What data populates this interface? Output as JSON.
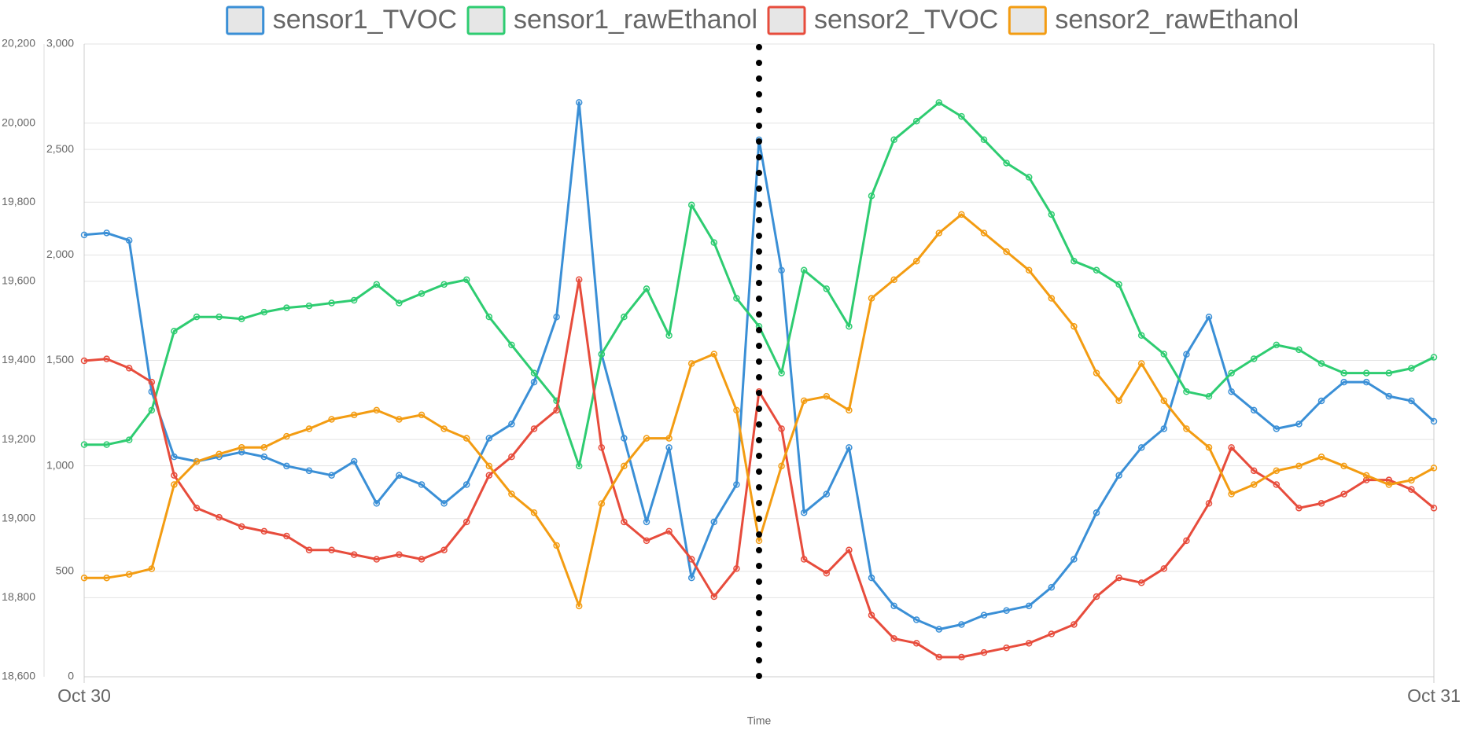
{
  "chart_data": {
    "type": "line",
    "x_label": "Time",
    "xlim": [
      0,
      24
    ],
    "xticks": [
      {
        "value": 0,
        "label": "Oct 30"
      },
      {
        "value": 24,
        "label": "Oct 31"
      }
    ],
    "x": [
      0,
      0.4,
      0.8,
      1.2,
      1.6,
      2,
      2.4,
      2.8,
      3.2,
      3.6,
      4,
      4.4,
      4.8,
      5.2,
      5.6,
      6,
      6.4,
      6.8,
      7.2,
      7.6,
      8,
      8.4,
      8.8,
      9.2,
      9.6,
      10,
      10.4,
      10.8,
      11.2,
      11.6,
      12,
      12.4,
      12.8,
      13.2,
      13.6,
      14,
      14.4,
      14.8,
      15.2,
      15.6,
      16,
      16.4,
      16.8,
      17.2,
      17.6,
      18,
      18.4,
      18.8,
      19.2,
      19.6,
      20,
      20.4,
      20.8,
      21.2,
      21.6,
      22,
      22.4,
      22.8,
      23.2,
      23.6,
      24
    ],
    "ylim": [
      0,
      3000
    ],
    "yticks": [
      0,
      500,
      {
        "value": 1000,
        "label": "1,000"
      },
      {
        "value": 1500,
        "label": "1,500"
      },
      {
        "value": 2000,
        "label": "2,000"
      },
      {
        "value": 2500,
        "label": "2,500"
      },
      {
        "value": 3000,
        "label": "3,000"
      }
    ],
    "y2lim": [
      18600,
      20200
    ],
    "y2ticks": [
      {
        "value": 18600,
        "label": "18,600"
      },
      {
        "value": 18800,
        "label": "18,800"
      },
      {
        "value": 19000,
        "label": "19,000"
      },
      {
        "value": 19200,
        "label": "19,200"
      },
      {
        "value": 19400,
        "label": "19,400"
      },
      {
        "value": 19600,
        "label": "19,600"
      },
      {
        "value": 19800,
        "label": "19,800"
      },
      {
        "value": 20000,
        "label": "20,000"
      },
      {
        "value": 20200,
        "label": "20,200"
      }
    ],
    "grid": true,
    "cursor_x": 12,
    "series": [
      {
        "name": "sensor1_TVOC",
        "color": "#3a8fd6",
        "values": [
          2095,
          2104,
          2069,
          1352,
          1043,
          1021,
          1043,
          1065,
          1043,
          999,
          977,
          955,
          1021,
          822,
          955,
          911,
          822,
          911,
          1131,
          1198,
          1397,
          1706,
          2723,
          1529,
          1131,
          734,
          1087,
          469,
          734,
          911,
          2546,
          1927,
          778,
          866,
          1087,
          469,
          336,
          270,
          225,
          248,
          292,
          314,
          336,
          424,
          557,
          778,
          955,
          1087,
          1176,
          1529,
          1706,
          1352,
          1264,
          1176,
          1198,
          1308,
          1397,
          1397,
          1330,
          1308,
          1211
        ]
      },
      {
        "name": "sensor1_rawEthanol",
        "color": "#2ecc71",
        "axis": "y2",
        "values": [
          19187,
          19187,
          19199,
          19274,
          19474,
          19510,
          19510,
          19505,
          19522,
          19533,
          19538,
          19545,
          19552,
          19592,
          19545,
          19569,
          19592,
          19604,
          19510,
          19439,
          19368,
          19298,
          19133,
          19416,
          19510,
          19581,
          19463,
          19793,
          19698,
          19557,
          19486,
          19368,
          19628,
          19581,
          19486,
          19816,
          19958,
          20005,
          20052,
          20017,
          19958,
          19899,
          19863,
          19769,
          19651,
          19628,
          19592,
          19463,
          19416,
          19321,
          19309,
          19368,
          19404,
          19439,
          19427,
          19392,
          19368,
          19368,
          19368,
          19380,
          19408
        ]
      },
      {
        "name": "sensor2_TVOC",
        "color": "#e74c3c",
        "values": [
          1498,
          1507,
          1463,
          1397,
          955,
          800,
          756,
          712,
          690,
          667,
          601,
          601,
          579,
          557,
          579,
          557,
          601,
          734,
          955,
          1043,
          1176,
          1264,
          1883,
          1087,
          734,
          645,
          690,
          557,
          380,
          513,
          1352,
          1176,
          557,
          491,
          601,
          292,
          181,
          159,
          93,
          93,
          115,
          137,
          159,
          203,
          248,
          380,
          469,
          446,
          513,
          645,
          822,
          1087,
          977,
          911,
          800,
          822,
          866,
          933,
          933,
          888,
          800
        ]
      },
      {
        "name": "sensor2_rawEthanol",
        "color": "#f39c12",
        "axis": "y2",
        "values": [
          18850,
          18850,
          18859,
          18873,
          19086,
          19144,
          19163,
          19180,
          19180,
          19208,
          19227,
          19251,
          19262,
          19274,
          19251,
          19262,
          19227,
          19203,
          19133,
          19062,
          19015,
          18932,
          18779,
          19038,
          19133,
          19203,
          19203,
          19392,
          19416,
          19274,
          18944,
          19133,
          19298,
          19309,
          19274,
          19557,
          19604,
          19651,
          19722,
          19769,
          19722,
          19675,
          19628,
          19557,
          19486,
          19368,
          19298,
          19392,
          19298,
          19227,
          19180,
          19062,
          19086,
          19121,
          19133,
          19156,
          19133,
          19109,
          19086,
          19097,
          19128
        ]
      }
    ]
  }
}
